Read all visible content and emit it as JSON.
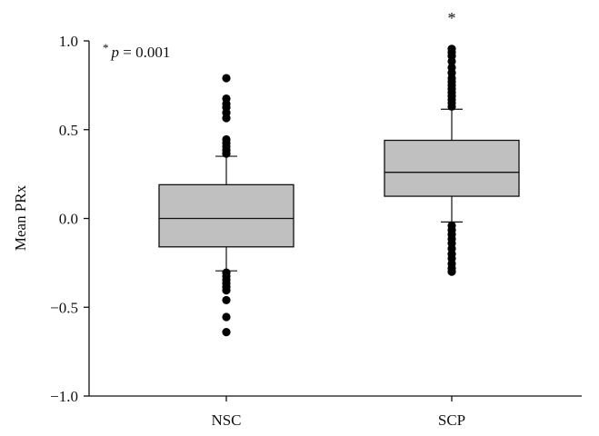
{
  "chart_data": {
    "type": "box",
    "ylabel": "Mean PRx",
    "ylim": [
      -1.0,
      1.0
    ],
    "yticks": [
      -1.0,
      -0.5,
      0.0,
      0.5,
      1.0
    ],
    "ytick_labels": [
      "−1.0",
      "−0.5",
      "0.0",
      "0.5",
      "1.0"
    ],
    "categories": [
      "NSC",
      "SCP"
    ],
    "annotation": {
      "star": "*",
      "p_label": "p",
      "p_rest": " = 0.001"
    },
    "significance_marker": {
      "category": "SCP",
      "text": "*"
    },
    "boxes": [
      {
        "category": "NSC",
        "q1": -0.16,
        "median": 0.0,
        "q3": 0.19,
        "whisker_low": -0.295,
        "whisker_high": 0.35,
        "outliers": [
          -0.64,
          -0.555,
          -0.46,
          -0.405,
          -0.385,
          -0.365,
          -0.345,
          -0.325,
          -0.305,
          0.365,
          0.385,
          0.405,
          0.425,
          0.445,
          0.565,
          0.595,
          0.625,
          0.645,
          0.675,
          0.79
        ],
        "fill": "#c0c0c0"
      },
      {
        "category": "SCP",
        "q1": 0.125,
        "median": 0.26,
        "q3": 0.44,
        "whisker_low": -0.02,
        "whisker_high": 0.615,
        "outliers": [
          -0.3,
          -0.28,
          -0.255,
          -0.225,
          -0.2,
          -0.17,
          -0.14,
          -0.115,
          -0.09,
          -0.065,
          -0.04,
          0.63,
          0.65,
          0.67,
          0.69,
          0.71,
          0.73,
          0.75,
          0.77,
          0.79,
          0.82,
          0.85,
          0.885,
          0.915,
          0.935,
          0.955
        ],
        "fill": "#c0c0c0"
      }
    ],
    "colors": {
      "box_fill": "#c0c0c0",
      "line": "#111111",
      "outlier": "#000000"
    }
  }
}
